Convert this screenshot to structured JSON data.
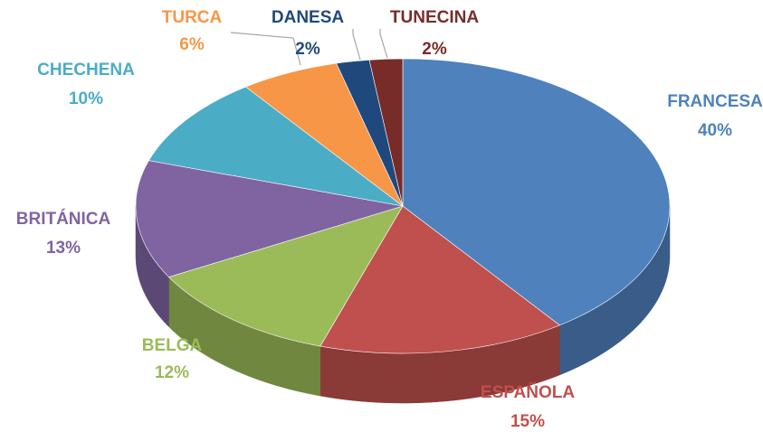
{
  "chart_data": {
    "type": "pie",
    "categories": [
      "FRANCESA",
      "ESPAÑOLA",
      "BELGA",
      "BRITÁNICA",
      "CHECHENA",
      "TURCA",
      "DANESA",
      "TUNECINA"
    ],
    "values": [
      40,
      15,
      12,
      13,
      10,
      6,
      2,
      2
    ],
    "value_labels": [
      "40%",
      "15%",
      "12%",
      "13%",
      "10%",
      "6%",
      "2%",
      "2%"
    ],
    "colors": [
      "#4f81bd",
      "#c0504d",
      "#9bbb59",
      "#8064a2",
      "#4bacc6",
      "#f79646",
      "#1f497d",
      "#772c2a"
    ]
  }
}
